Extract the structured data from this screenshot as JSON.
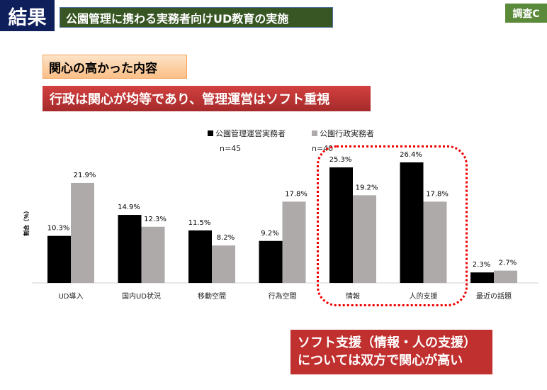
{
  "header": {
    "result_label": "結果",
    "title": "公園管理に携わる実務者向けUD教育の実施",
    "survey_tag": "調査C"
  },
  "topic_label": "関心の高かった内容",
  "claim": "行政は関心が均等であり、管理運営はソフト重視",
  "callout": {
    "line1": "ソフト支援（情報・人の支援）",
    "line2": "については双方で関心が高い"
  },
  "colors": {
    "series1": "#000000",
    "series2": "#aeaaaa",
    "highlight": "#ee0000"
  },
  "chart_data": {
    "type": "bar",
    "ylabel": "割合（％）",
    "ylim": [
      0,
      30
    ],
    "categories": [
      "UD導入",
      "国内UD状況",
      "移動空間",
      "行為空間",
      "情報",
      "人的支援",
      "最近の話題"
    ],
    "series": [
      {
        "name": "公園管理運営実務者",
        "n": "n=45",
        "values": [
          10.3,
          14.9,
          11.5,
          9.2,
          25.3,
          26.4,
          2.3
        ]
      },
      {
        "name": "公園行政実務者",
        "n": "n=40",
        "values": [
          21.9,
          12.3,
          8.2,
          17.8,
          19.2,
          17.8,
          2.7
        ]
      }
    ],
    "legend": "top-center"
  }
}
